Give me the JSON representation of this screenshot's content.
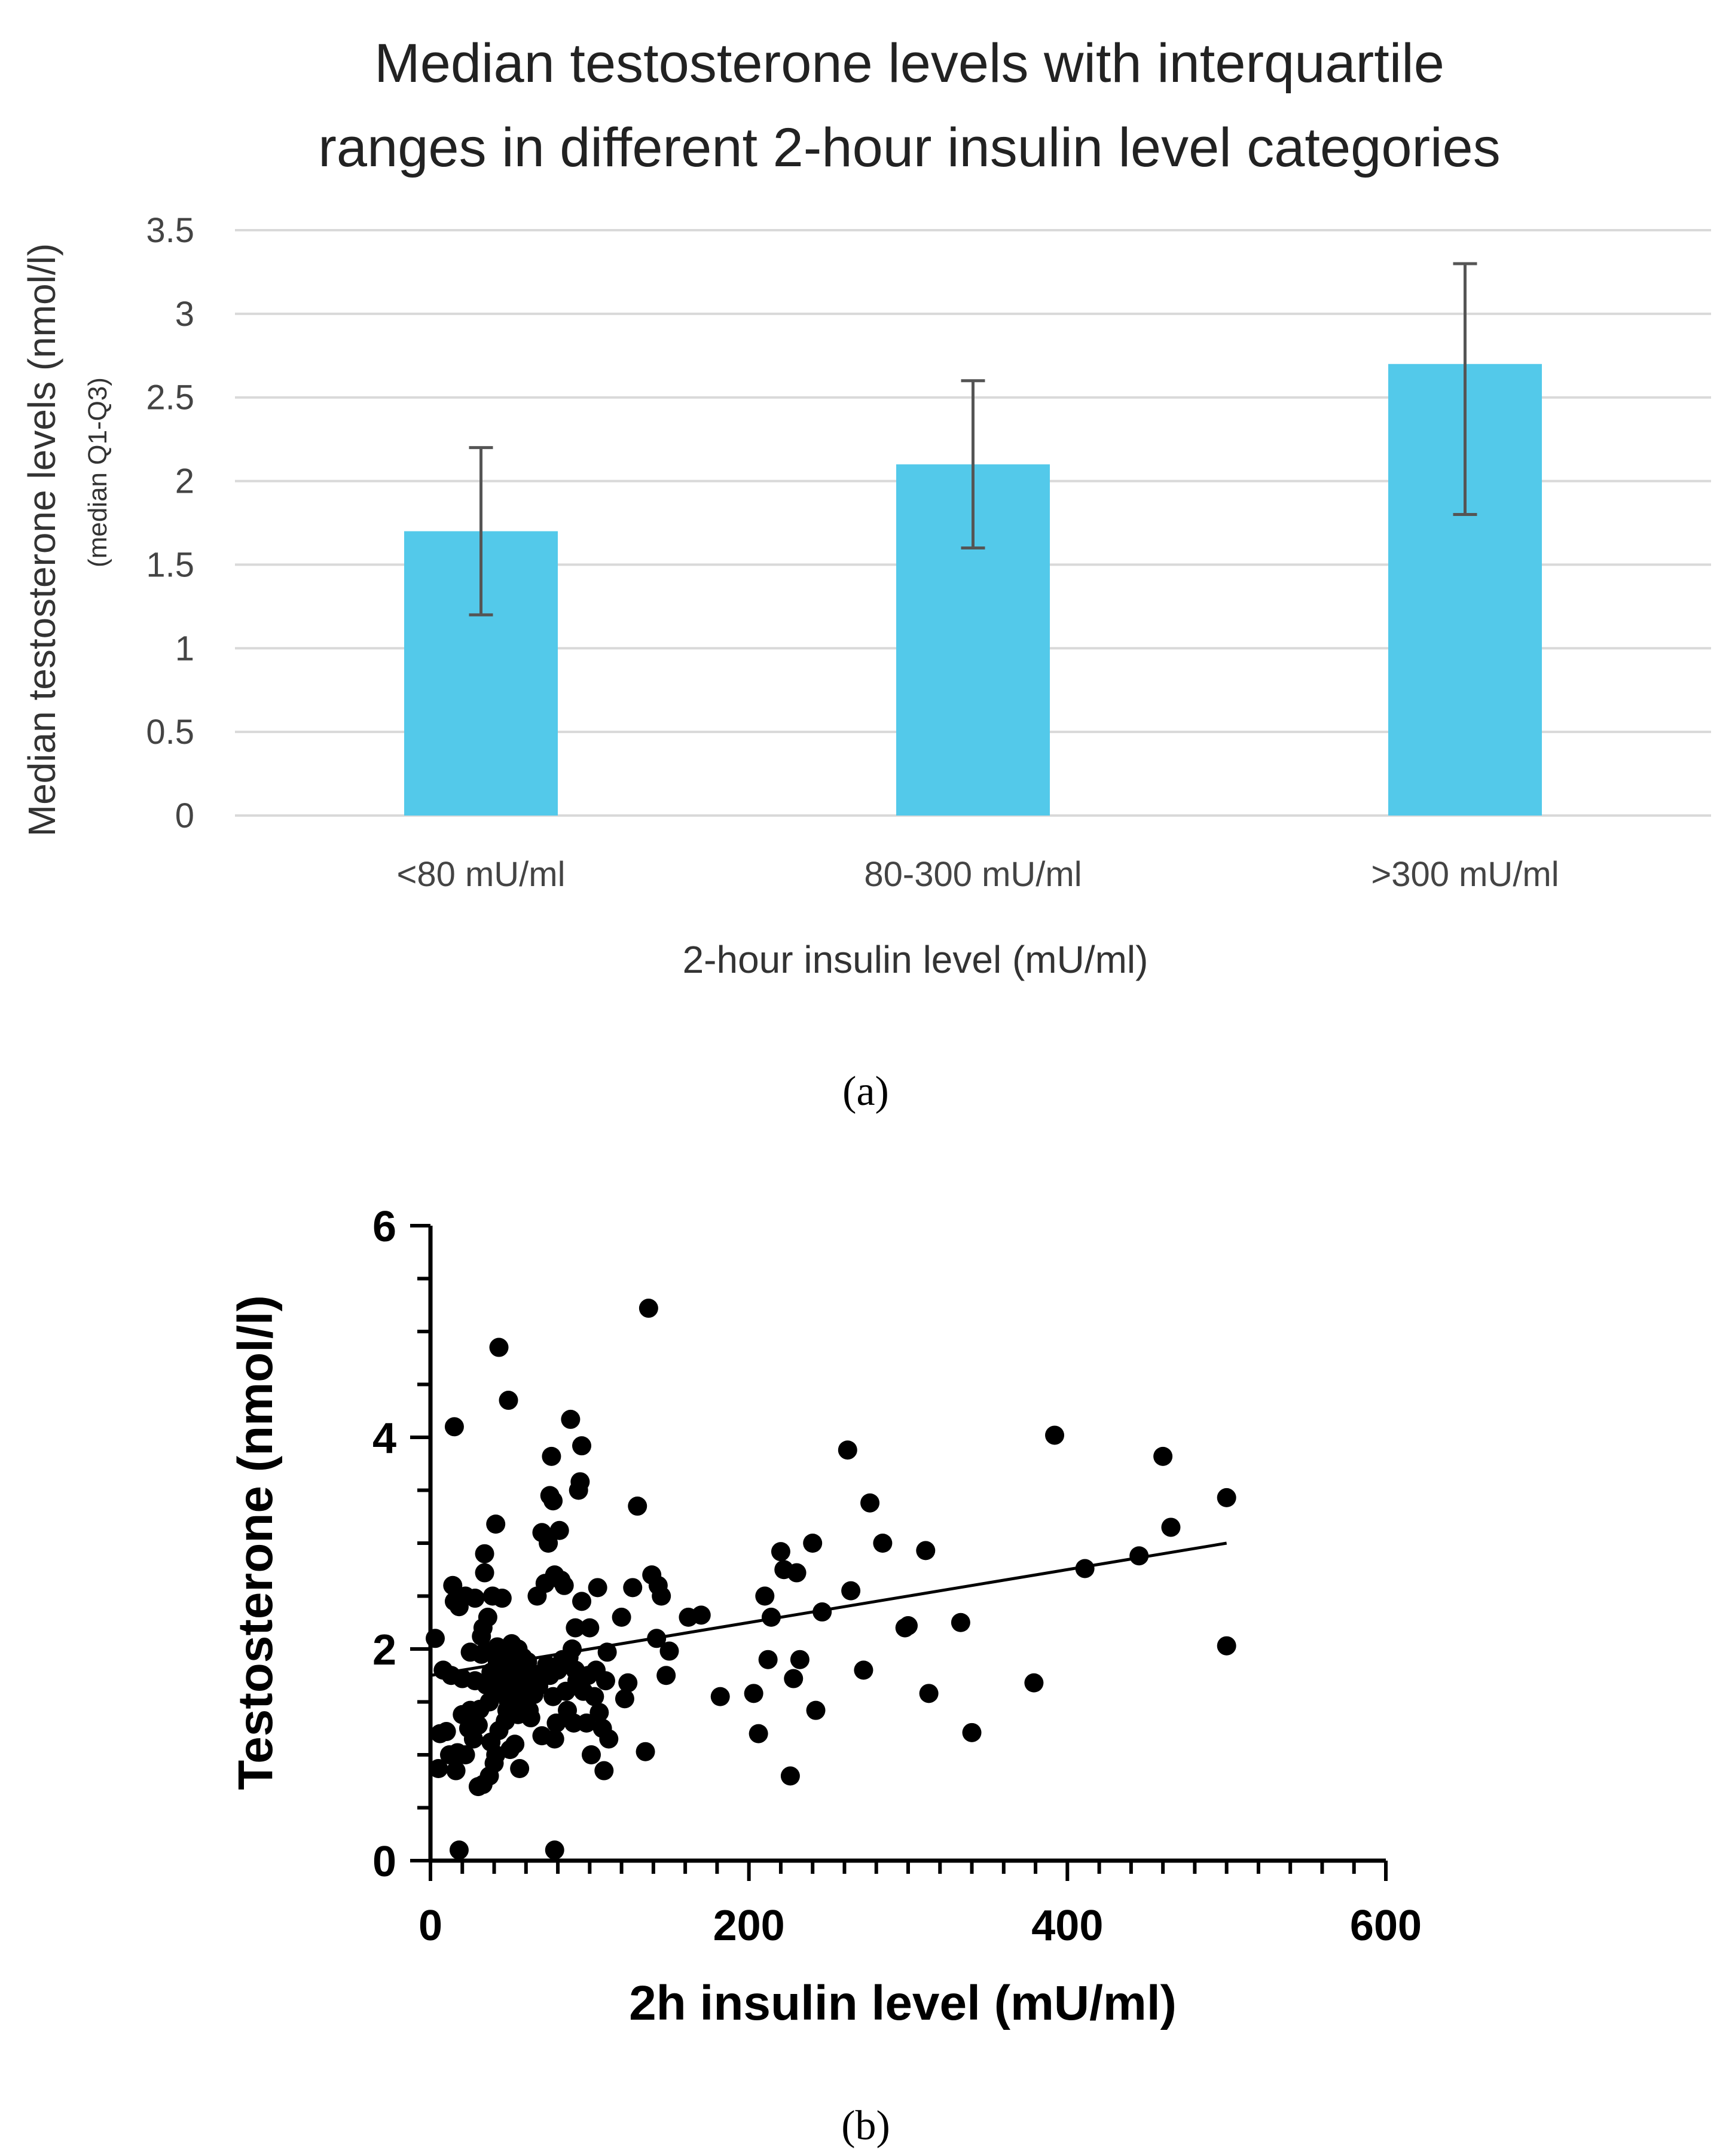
{
  "panels": [
    {
      "label": "(a)"
    },
    {
      "label": "(b)"
    }
  ],
  "chart_data": [
    {
      "type": "bar",
      "title_lines": [
        "Median testosterone levels with interquartile",
        "ranges in different 2-hour insulin level categories"
      ],
      "categories": [
        "<80 mU/ml",
        "80-300 mU/ml",
        ">300 mU/ml"
      ],
      "values": [
        1.7,
        2.1,
        2.7
      ],
      "error_low": [
        1.2,
        1.6,
        1.8
      ],
      "error_high": [
        2.2,
        2.6,
        3.3
      ],
      "ylabel": "Median testosterone levels (nmol/l)",
      "ylabel_sub": "(median Q1-Q3)",
      "xlabel": "2-hour insulin level (mU/ml)",
      "ylim": [
        0,
        3.5
      ],
      "yticks": [
        0,
        0.5,
        1,
        1.5,
        2,
        2.5,
        3,
        3.5
      ],
      "ytick_labels": [
        "0",
        "0.5",
        "1",
        "1.5",
        "2",
        "2.5",
        "3",
        "3.5"
      ],
      "grid": true,
      "bar_color": "#53C9EA",
      "error_color": "#555555"
    },
    {
      "type": "scatter",
      "xlabel": "2h insulin level (mU/ml)",
      "ylabel": "Testosterone (nmol/l)",
      "xlim": [
        0,
        600
      ],
      "ylim": [
        0,
        6
      ],
      "xticks": [
        0,
        200,
        400,
        600
      ],
      "xtick_labels": [
        "0",
        "200",
        "400",
        "600"
      ],
      "yticks": [
        0,
        2,
        4,
        6
      ],
      "ytick_labels": [
        "0",
        "2",
        "4",
        "6"
      ],
      "trendline": {
        "x": [
          0,
          500
        ],
        "y": [
          1.75,
          3.0
        ]
      },
      "point_color": "#000000",
      "points": [
        [
          3,
          2.1
        ],
        [
          5,
          0.87
        ],
        [
          6,
          1.2
        ],
        [
          8,
          1.8
        ],
        [
          10,
          1.22
        ],
        [
          12,
          1.0
        ],
        [
          13,
          1.75
        ],
        [
          14,
          2.6
        ],
        [
          15,
          2.45
        ],
        [
          15,
          4.1
        ],
        [
          16,
          0.85
        ],
        [
          17,
          1.02
        ],
        [
          18,
          2.4
        ],
        [
          18,
          0.1
        ],
        [
          20,
          1.72
        ],
        [
          20,
          1.38
        ],
        [
          22,
          2.5
        ],
        [
          22,
          1.0
        ],
        [
          24,
          1.25
        ],
        [
          25,
          1.42
        ],
        [
          25,
          1.97
        ],
        [
          27,
          1.15
        ],
        [
          28,
          2.48
        ],
        [
          28,
          1.7
        ],
        [
          30,
          0.7
        ],
        [
          30,
          1.28
        ],
        [
          31,
          1.43
        ],
        [
          32,
          1.95
        ],
        [
          32,
          2.12
        ],
        [
          33,
          2.2
        ],
        [
          33,
          0.72
        ],
        [
          34,
          2.9
        ],
        [
          34,
          2.72
        ],
        [
          35,
          1.66
        ],
        [
          35,
          1.98
        ],
        [
          36,
          2.3
        ],
        [
          37,
          1.5
        ],
        [
          37,
          0.8
        ],
        [
          38,
          1.12
        ],
        [
          38,
          1.78
        ],
        [
          39,
          2.5
        ],
        [
          40,
          1.6
        ],
        [
          40,
          0.92
        ],
        [
          40,
          1.75
        ],
        [
          41,
          3.18
        ],
        [
          41,
          1.0
        ],
        [
          42,
          2.02
        ],
        [
          42,
          1.88
        ],
        [
          43,
          4.85
        ],
        [
          43,
          1.23
        ],
        [
          44,
          1.84
        ],
        [
          44,
          1.62
        ],
        [
          45,
          1.95
        ],
        [
          45,
          2.48
        ],
        [
          46,
          1.72
        ],
        [
          46,
          1.58
        ],
        [
          47,
          1.32
        ],
        [
          47,
          2.0
        ],
        [
          48,
          1.42
        ],
        [
          48,
          1.8
        ],
        [
          49,
          4.35
        ],
        [
          49,
          1.5
        ],
        [
          50,
          1.05
        ],
        [
          50,
          1.65
        ],
        [
          51,
          1.9
        ],
        [
          51,
          2.05
        ],
        [
          52,
          1.45
        ],
        [
          52,
          1.74
        ],
        [
          53,
          1.1
        ],
        [
          54,
          1.64
        ],
        [
          54,
          1.85
        ],
        [
          55,
          1.38
        ],
        [
          55,
          2.0
        ],
        [
          56,
          1.55
        ],
        [
          56,
          0.87
        ],
        [
          57,
          1.79
        ],
        [
          58,
          1.92
        ],
        [
          58,
          1.66
        ],
        [
          60,
          1.5
        ],
        [
          60,
          1.7
        ],
        [
          61,
          1.88
        ],
        [
          62,
          1.42
        ],
        [
          63,
          1.35
        ],
        [
          64,
          1.77
        ],
        [
          65,
          1.57
        ],
        [
          67,
          2.5
        ],
        [
          68,
          1.65
        ],
        [
          70,
          3.1
        ],
        [
          70,
          1.18
        ],
        [
          72,
          2.62
        ],
        [
          73,
          1.85
        ],
        [
          74,
          3.0
        ],
        [
          75,
          3.45
        ],
        [
          75,
          1.75
        ],
        [
          76,
          3.82
        ],
        [
          77,
          3.4
        ],
        [
          77,
          1.55
        ],
        [
          78,
          2.7
        ],
        [
          78,
          0.1
        ],
        [
          78,
          1.15
        ],
        [
          79,
          1.3
        ],
        [
          80,
          1.8
        ],
        [
          81,
          3.12
        ],
        [
          82,
          2.65
        ],
        [
          83,
          1.9
        ],
        [
          84,
          2.6
        ],
        [
          85,
          1.6
        ],
        [
          86,
          1.42
        ],
        [
          87,
          1.92
        ],
        [
          88,
          4.17
        ],
        [
          89,
          2.0
        ],
        [
          90,
          1.3
        ],
        [
          91,
          1.8
        ],
        [
          91,
          2.2
        ],
        [
          92,
          1.7
        ],
        [
          93,
          3.5
        ],
        [
          94,
          3.58
        ],
        [
          95,
          3.92
        ],
        [
          95,
          2.45
        ],
        [
          96,
          1.6
        ],
        [
          98,
          1.3
        ],
        [
          99,
          1.75
        ],
        [
          100,
          2.2
        ],
        [
          101,
          1.0
        ],
        [
          103,
          1.55
        ],
        [
          104,
          1.8
        ],
        [
          105,
          2.58
        ],
        [
          106,
          1.4
        ],
        [
          108,
          1.25
        ],
        [
          109,
          0.85
        ],
        [
          110,
          1.7
        ],
        [
          111,
          1.97
        ],
        [
          112,
          1.15
        ],
        [
          120,
          2.3
        ],
        [
          122,
          1.53
        ],
        [
          124,
          1.68
        ],
        [
          127,
          2.58
        ],
        [
          130,
          3.35
        ],
        [
          135,
          1.03
        ],
        [
          137,
          5.22
        ],
        [
          139,
          2.7
        ],
        [
          142,
          2.1
        ],
        [
          143,
          2.6
        ],
        [
          145,
          2.5
        ],
        [
          148,
          1.75
        ],
        [
          150,
          1.98
        ],
        [
          162,
          2.3
        ],
        [
          170,
          2.32
        ],
        [
          182,
          1.55
        ],
        [
          203,
          1.58
        ],
        [
          206,
          1.2
        ],
        [
          210,
          2.5
        ],
        [
          212,
          1.9
        ],
        [
          214,
          2.3
        ],
        [
          220,
          2.92
        ],
        [
          222,
          2.75
        ],
        [
          226,
          0.8
        ],
        [
          228,
          1.72
        ],
        [
          230,
          2.72
        ],
        [
          232,
          1.9
        ],
        [
          240,
          3.0
        ],
        [
          242,
          1.42
        ],
        [
          246,
          2.35
        ],
        [
          264,
          2.55
        ],
        [
          262,
          3.88
        ],
        [
          272,
          1.8
        ],
        [
          276,
          3.38
        ],
        [
          284,
          3.0
        ],
        [
          298,
          2.2
        ],
        [
          300,
          2.22
        ],
        [
          311,
          2.93
        ],
        [
          313,
          1.58
        ],
        [
          333,
          2.25
        ],
        [
          340,
          1.21
        ],
        [
          379,
          1.68
        ],
        [
          392,
          4.02
        ],
        [
          411,
          2.76
        ],
        [
          445,
          2.88
        ],
        [
          460,
          3.82
        ],
        [
          465,
          3.15
        ],
        [
          500,
          3.43
        ],
        [
          500,
          2.03
        ]
      ]
    }
  ]
}
